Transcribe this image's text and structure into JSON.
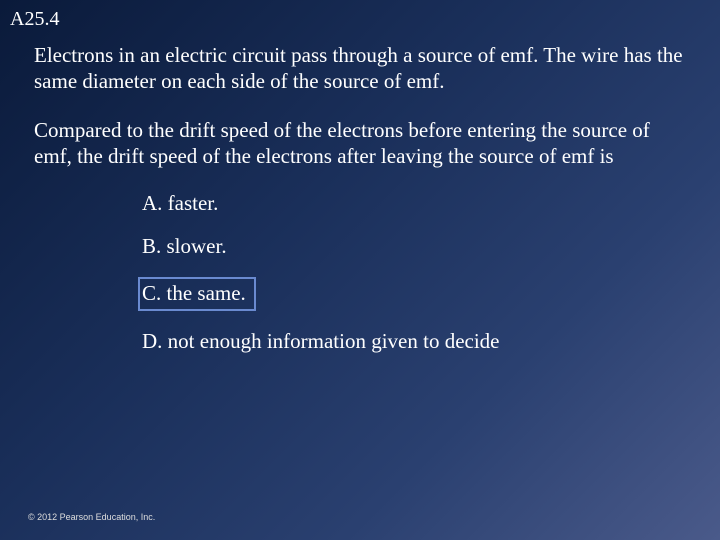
{
  "slide_number": "A25.4",
  "paragraph1": "Electrons in an electric circuit pass through a source of emf. The wire has the same diameter on each side of the source of emf.",
  "paragraph2": "Compared to the drift speed of the electrons before entering the source of emf, the drift speed of the electrons after leaving the source of emf is",
  "options": {
    "a": "A. faster.",
    "b": "B. slower.",
    "c": "C. the same.",
    "d": "D. not enough information given to decide"
  },
  "highlighted_option": "c",
  "copyright": "© 2012 Pearson Education, Inc.",
  "style": {
    "background_gradient": [
      "#0a1a3a",
      "#1a2f5a",
      "#2a4070",
      "#4a5a8a"
    ],
    "text_color": "#ffffff",
    "highlight_border_color": "#6a8ad0",
    "body_fontsize": 21,
    "slide_number_fontsize": 20,
    "copyright_fontsize": 9,
    "font_family": "Times New Roman"
  }
}
